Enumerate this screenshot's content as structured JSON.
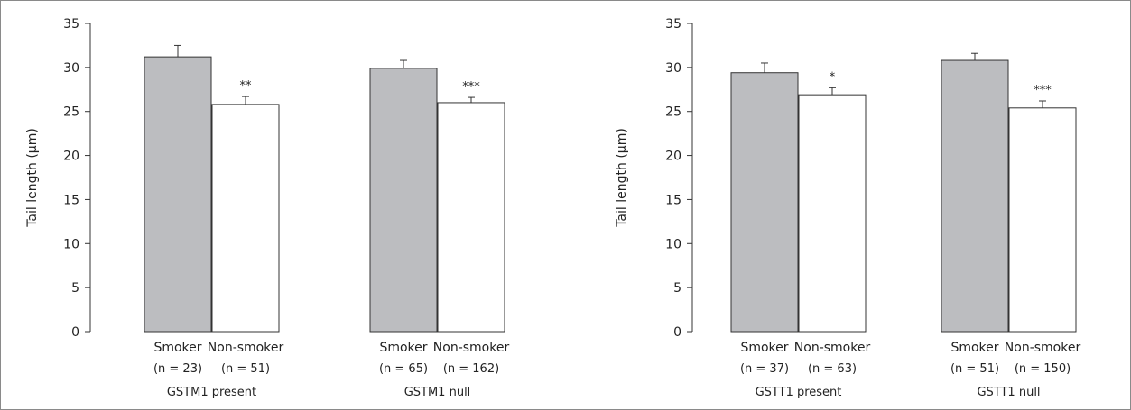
{
  "chart_data": [
    {
      "type": "bar",
      "ylabel": "Tail length (μm)",
      "ylim": [
        0,
        35
      ],
      "yticks": [
        0,
        5,
        10,
        15,
        20,
        25,
        30,
        35
      ],
      "grid": false,
      "legend": "none",
      "groups": [
        {
          "label": "GSTM1 present",
          "bars": [
            {
              "category": "Smoker",
              "n_label": "(n = 23)",
              "value": 31.2,
              "error": 1.3,
              "fill": "#bcbdc0",
              "significance": ""
            },
            {
              "category": "Non-smoker",
              "n_label": "(n = 51)",
              "value": 25.8,
              "error": 0.9,
              "fill": "#ffffff",
              "significance": "**"
            }
          ]
        },
        {
          "label": "GSTM1 null",
          "bars": [
            {
              "category": "Smoker",
              "n_label": "(n = 65)",
              "value": 29.9,
              "error": 0.9,
              "fill": "#bcbdc0",
              "significance": ""
            },
            {
              "category": "Non-smoker",
              "n_label": "(n = 162)",
              "value": 26.0,
              "error": 0.6,
              "fill": "#ffffff",
              "significance": "***"
            }
          ]
        }
      ]
    },
    {
      "type": "bar",
      "ylabel": "Tail length (μm)",
      "ylim": [
        0,
        35
      ],
      "yticks": [
        0,
        5,
        10,
        15,
        20,
        25,
        30,
        35
      ],
      "grid": false,
      "legend": "none",
      "groups": [
        {
          "label": "GSTT1 present",
          "bars": [
            {
              "category": "Smoker",
              "n_label": "(n = 37)",
              "value": 29.4,
              "error": 1.1,
              "fill": "#bcbdc0",
              "significance": ""
            },
            {
              "category": "Non-smoker",
              "n_label": "(n = 63)",
              "value": 26.9,
              "error": 0.8,
              "fill": "#ffffff",
              "significance": "*"
            }
          ]
        },
        {
          "label": "GSTT1 null",
          "bars": [
            {
              "category": "Smoker",
              "n_label": "(n = 51)",
              "value": 30.8,
              "error": 0.8,
              "fill": "#bcbdc0",
              "significance": ""
            },
            {
              "category": "Non-smoker",
              "n_label": "(n = 150)",
              "value": 25.4,
              "error": 0.8,
              "fill": "#ffffff",
              "significance": "***"
            }
          ]
        }
      ]
    }
  ]
}
